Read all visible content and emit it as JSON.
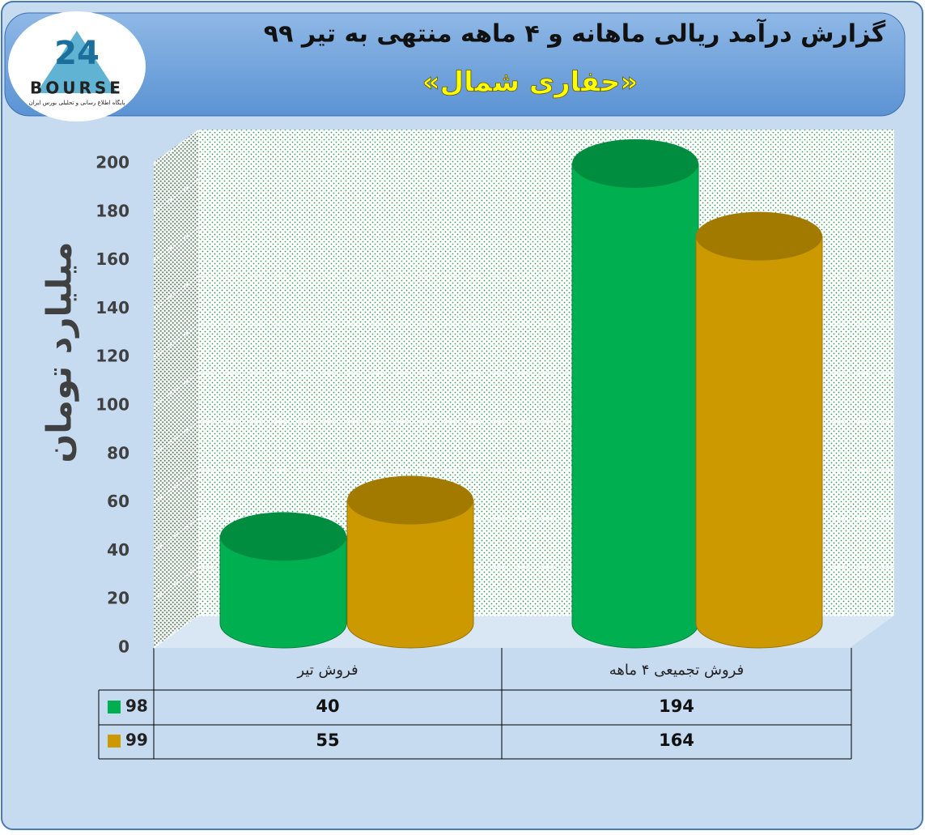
{
  "chart_data": {
    "type": "bar",
    "title": "گزارش درآمد ریالی ماهانه و ۴ ماهه منتهی به تیر ۹۹",
    "subtitle": "«حفاری شمال»",
    "logo_number": "24",
    "logo": "BOURSE",
    "logo_tagline": "پایگاه اطلاع رسانی و تحلیلی بورس ایران",
    "y_label": "میلیارد تومان",
    "categories": [
      "فروش تیر",
      "فروش تجمیعی ۴ ماهه"
    ],
    "series": [
      {
        "name": "98",
        "color": "#00b050",
        "values": [
          40,
          194
        ]
      },
      {
        "name": "99",
        "color": "#cc9900",
        "values": [
          55,
          164
        ]
      }
    ],
    "ylim": [
      0,
      200
    ],
    "yticks": [
      0,
      20,
      40,
      60,
      80,
      100,
      120,
      140,
      160,
      180,
      200
    ],
    "grid": true
  }
}
